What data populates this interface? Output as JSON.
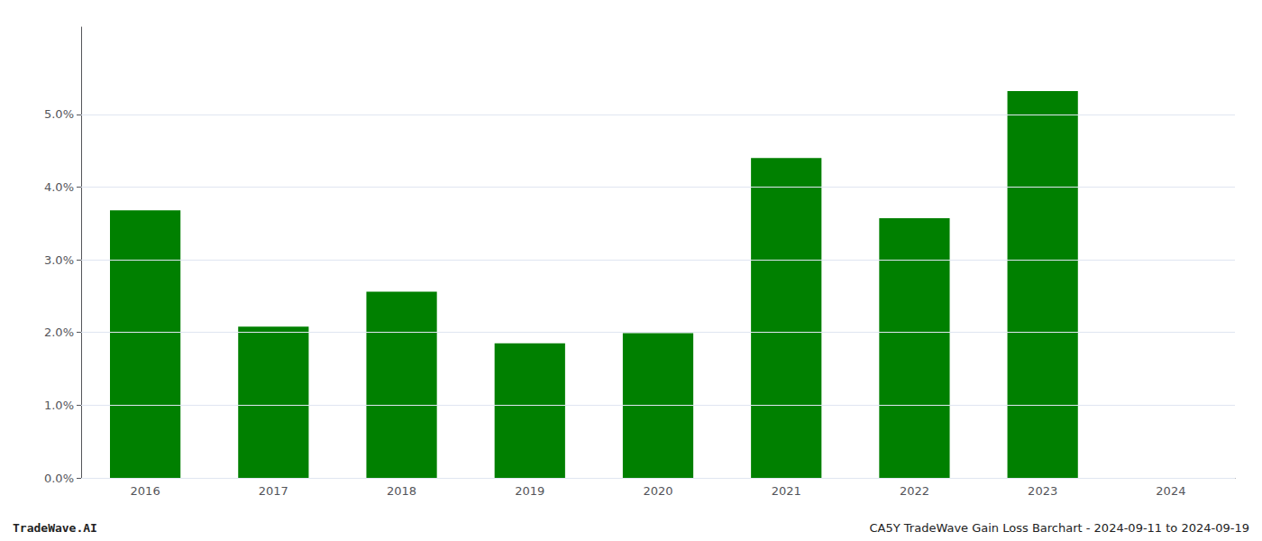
{
  "chart_data": {
    "type": "bar",
    "categories": [
      "2016",
      "2017",
      "2018",
      "2019",
      "2020",
      "2021",
      "2022",
      "2023",
      "2024"
    ],
    "values": [
      0.0368,
      0.0208,
      0.0256,
      0.0185,
      0.0199,
      0.044,
      0.0357,
      0.0532,
      null
    ],
    "color": "#008000",
    "ylim": [
      0,
      0.062
    ],
    "yticks": [
      {
        "value": 0.0,
        "label": "0.0%"
      },
      {
        "value": 0.01,
        "label": "1.0%"
      },
      {
        "value": 0.02,
        "label": "2.0%"
      },
      {
        "value": 0.03,
        "label": "3.0%"
      },
      {
        "value": 0.04,
        "label": "4.0%"
      },
      {
        "value": 0.05,
        "label": "5.0%"
      }
    ],
    "grid": true,
    "annotations": [
      "TradeWave.AI",
      "CA5Y TradeWave Gain Loss Barchart - 2024-09-11 to 2024-09-19"
    ]
  }
}
